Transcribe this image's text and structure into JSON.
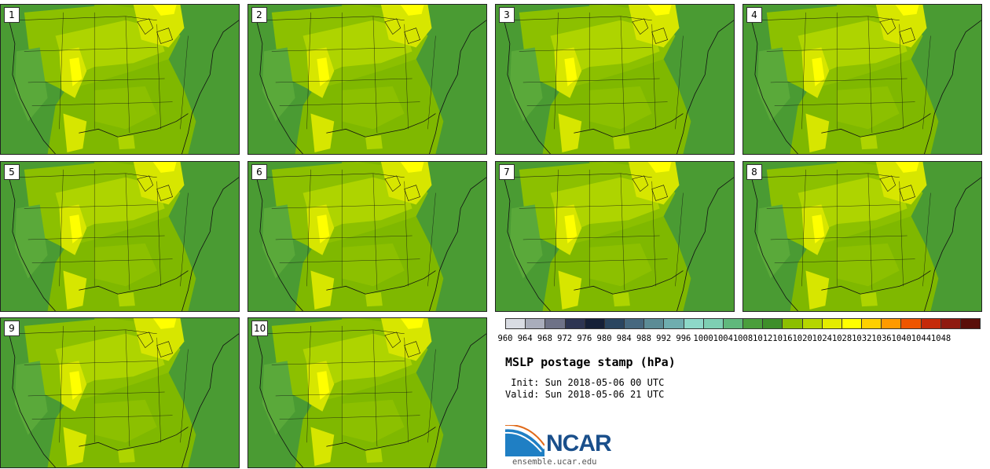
{
  "product": {
    "title": "MSLP postage stamp (hPa)",
    "init": " Init: Sun 2018-05-06 00 UTC",
    "valid": "Valid: Sun 2018-05-06 21 UTC",
    "logo_text": "NCAR",
    "url": "ensemble.ucar.edu"
  },
  "panels": [
    {
      "label": "1"
    },
    {
      "label": "2"
    },
    {
      "label": "3"
    },
    {
      "label": "4"
    },
    {
      "label": "5"
    },
    {
      "label": "6"
    },
    {
      "label": "7"
    },
    {
      "label": "8"
    },
    {
      "label": "9"
    },
    {
      "label": "10"
    }
  ],
  "colorbar": {
    "ticks": [
      "960",
      "964",
      "968",
      "972",
      "976",
      "980",
      "984",
      "988",
      "992",
      "996",
      "1000",
      "1004",
      "1008",
      "1012",
      "1016",
      "1020",
      "1024",
      "1028",
      "1032",
      "1036",
      "1040",
      "1044",
      "1048"
    ],
    "colors": [
      "#d9dce3",
      "#a9adbb",
      "#6e7287",
      "#2d3552",
      "#152038",
      "#2a4560",
      "#46687f",
      "#5c8c96",
      "#6fadaf",
      "#8dd8c8",
      "#7ecfb3",
      "#60b87c",
      "#4a9e3c",
      "#3e8f2a",
      "#8cbf00",
      "#b5d600",
      "#e4ec00",
      "#ffff00",
      "#ffd000",
      "#ff9a00",
      "#ee5500",
      "#c52a0a",
      "#8f1a10",
      "#5a0f0a"
    ]
  },
  "map_colors": {
    "ocean": "#7fb800",
    "low": "#4a9b33",
    "lowish": "#5aa93a",
    "mid": "#8cc000",
    "midhigh": "#aed400",
    "high": "#d7e600",
    "peak": "#ffff00",
    "border": "#111111"
  }
}
